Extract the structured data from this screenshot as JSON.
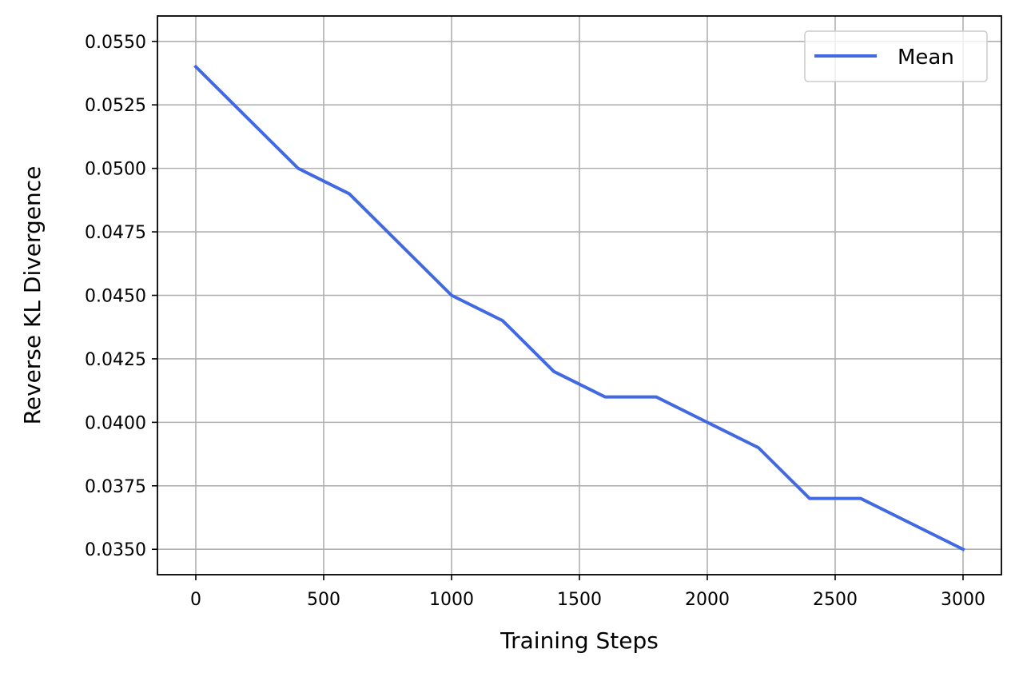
{
  "chart_data": {
    "type": "line",
    "title": "",
    "xlabel": "Training Steps",
    "ylabel": "Reverse KL Divergence",
    "xlim": [
      -150,
      3150
    ],
    "ylim": [
      0.034,
      0.056
    ],
    "xticks": [
      0,
      500,
      1000,
      1500,
      2000,
      2500,
      3000
    ],
    "xtick_labels": [
      "0",
      "500",
      "1000",
      "1500",
      "2000",
      "2500",
      "3000"
    ],
    "yticks": [
      0.035,
      0.0375,
      0.04,
      0.0425,
      0.045,
      0.0475,
      0.05,
      0.0525,
      0.055
    ],
    "ytick_labels": [
      "0.0350",
      "0.0375",
      "0.0400",
      "0.0425",
      "0.0450",
      "0.0475",
      "0.0500",
      "0.0525",
      "0.0550"
    ],
    "grid": true,
    "legend_position": "top-right",
    "series": [
      {
        "name": "Mean",
        "color": "#4169e1",
        "x": [
          0,
          400,
          600,
          1000,
          1200,
          1400,
          1600,
          1800,
          2000,
          2200,
          2400,
          2600,
          3000
        ],
        "y": [
          0.054,
          0.05,
          0.049,
          0.045,
          0.044,
          0.042,
          0.041,
          0.041,
          0.04,
          0.039,
          0.037,
          0.037,
          0.035
        ]
      }
    ]
  }
}
